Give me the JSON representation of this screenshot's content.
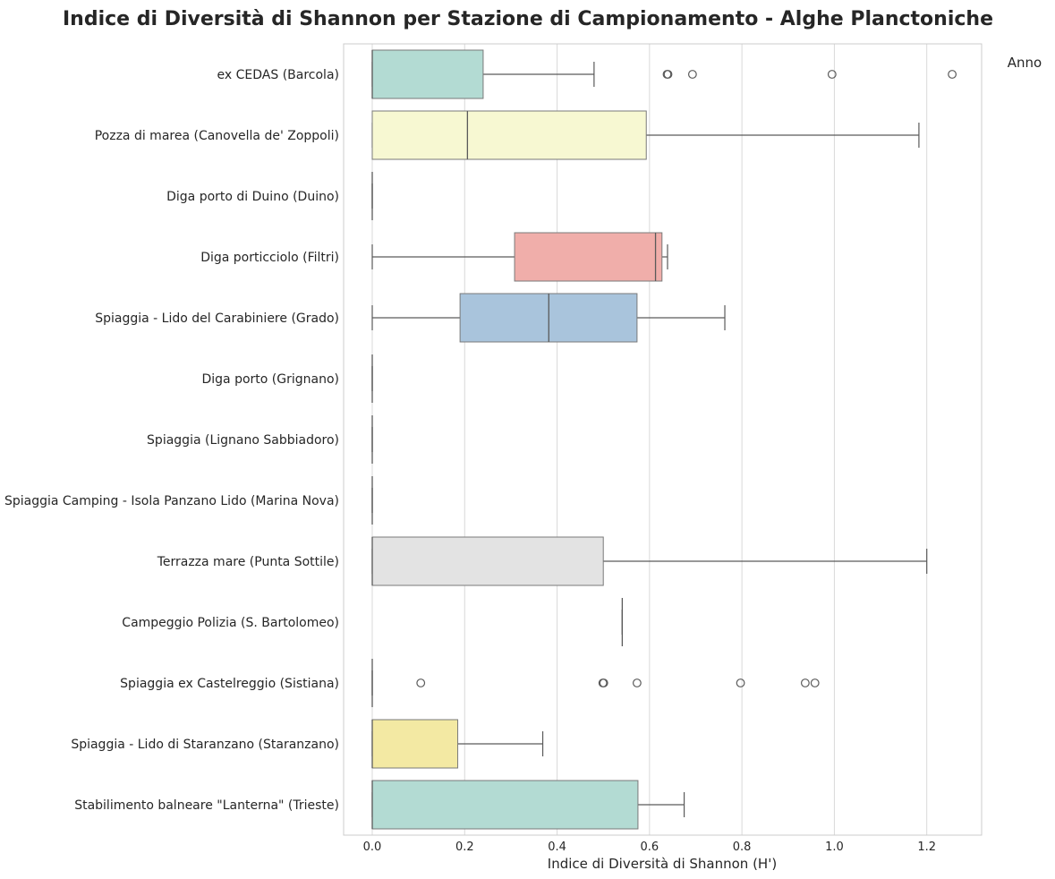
{
  "chart_data": {
    "type": "boxplot-horizontal",
    "title": "Indice di Diversità di Shannon per Stazione di Campionamento - Alghe Planctoniche",
    "xlabel": "Indice di Diversità di Shannon (H')",
    "ylabel": "",
    "xlim": [
      -0.065,
      1.32
    ],
    "xticks": [
      "0.0",
      "0.2",
      "0.4",
      "0.6",
      "0.8",
      "1.0",
      "1.2"
    ],
    "xtick_values": [
      0.0,
      0.2,
      0.4,
      0.6,
      0.8,
      1.0,
      1.2
    ],
    "grid": "vertical",
    "legend": {
      "title": "Anno",
      "placement": "top-right outside"
    },
    "stations": [
      {
        "name": "ex CEDAS (Barcola)",
        "color": "#b3dbd3",
        "min": 0.0,
        "q1": 0.0,
        "median": 0.0,
        "q3": 0.24,
        "max": 0.48,
        "outliers": [
          0.638,
          0.64,
          0.693,
          0.995,
          1.255
        ]
      },
      {
        "name": "Pozza di marea (Canovella de' Zoppoli)",
        "color": "#f7f8d2",
        "min": 0.0,
        "q1": 0.0,
        "median": 0.206,
        "q3": 0.593,
        "max": 1.183,
        "outliers": []
      },
      {
        "name": "Diga porto di Duino (Duino)",
        "color": "#c9c6dc",
        "min": 0.0,
        "q1": 0.0,
        "median": 0.0,
        "q3": 0.0,
        "max": 0.0,
        "outliers": []
      },
      {
        "name": "Diga porticciolo (Filtri)",
        "color": "#f0aeaa",
        "min": 0.0,
        "q1": 0.308,
        "median": 0.613,
        "q3": 0.627,
        "max": 0.639,
        "outliers": []
      },
      {
        "name": "Spiaggia - Lido del Carabiniere (Grado)",
        "color": "#a9c4dc",
        "min": 0.0,
        "q1": 0.19,
        "median": 0.382,
        "q3": 0.573,
        "max": 0.763,
        "outliers": []
      },
      {
        "name": "Diga porto (Grignano)",
        "color": "#f5cda2",
        "min": 0.0,
        "q1": 0.0,
        "median": 0.0,
        "q3": 0.0,
        "max": 0.0,
        "outliers": []
      },
      {
        "name": "Spiaggia (Lignano Sabbiadoro)",
        "color": "#cde3a8",
        "min": 0.0,
        "q1": 0.0,
        "median": 0.0,
        "q3": 0.0,
        "max": 0.0,
        "outliers": []
      },
      {
        "name": "Spiaggia Camping - Isola Panzano Lido (Marina Nova)",
        "color": "#f4d6e6",
        "min": 0.0,
        "q1": 0.0,
        "median": 0.0,
        "q3": 0.0,
        "max": 0.0,
        "outliers": []
      },
      {
        "name": "Terrazza mare (Punta Sottile)",
        "color": "#e3e3e3",
        "min": 0.0,
        "q1": 0.0,
        "median": 0.0,
        "q3": 0.5,
        "max": 1.2,
        "outliers": []
      },
      {
        "name": "Campeggio Polizia (S. Bartolomeo)",
        "color": "#d3b9d6",
        "min": 0.541,
        "q1": 0.541,
        "median": 0.541,
        "q3": 0.541,
        "max": 0.541,
        "outliers": []
      },
      {
        "name": "Spiaggia ex Castelreggio (Sistiana)",
        "color": "#d6ead0",
        "min": 0.0,
        "q1": 0.0,
        "median": 0.0,
        "q3": 0.0,
        "max": 0.0,
        "outliers": [
          0.105,
          0.499,
          0.501,
          0.573,
          0.797,
          0.937,
          0.958
        ]
      },
      {
        "name": "Spiaggia - Lido di Staranzano (Staranzano)",
        "color": "#f3e9a3",
        "min": 0.0,
        "q1": 0.0,
        "median": 0.0,
        "q3": 0.185,
        "max": 0.369,
        "outliers": []
      },
      {
        "name": "Stabilimento balneare \"Lanterna\" (Trieste)",
        "color": "#b3dbd3",
        "min": 0.0,
        "q1": 0.0,
        "median": 0.0,
        "q3": 0.575,
        "max": 0.675,
        "outliers": []
      }
    ]
  }
}
